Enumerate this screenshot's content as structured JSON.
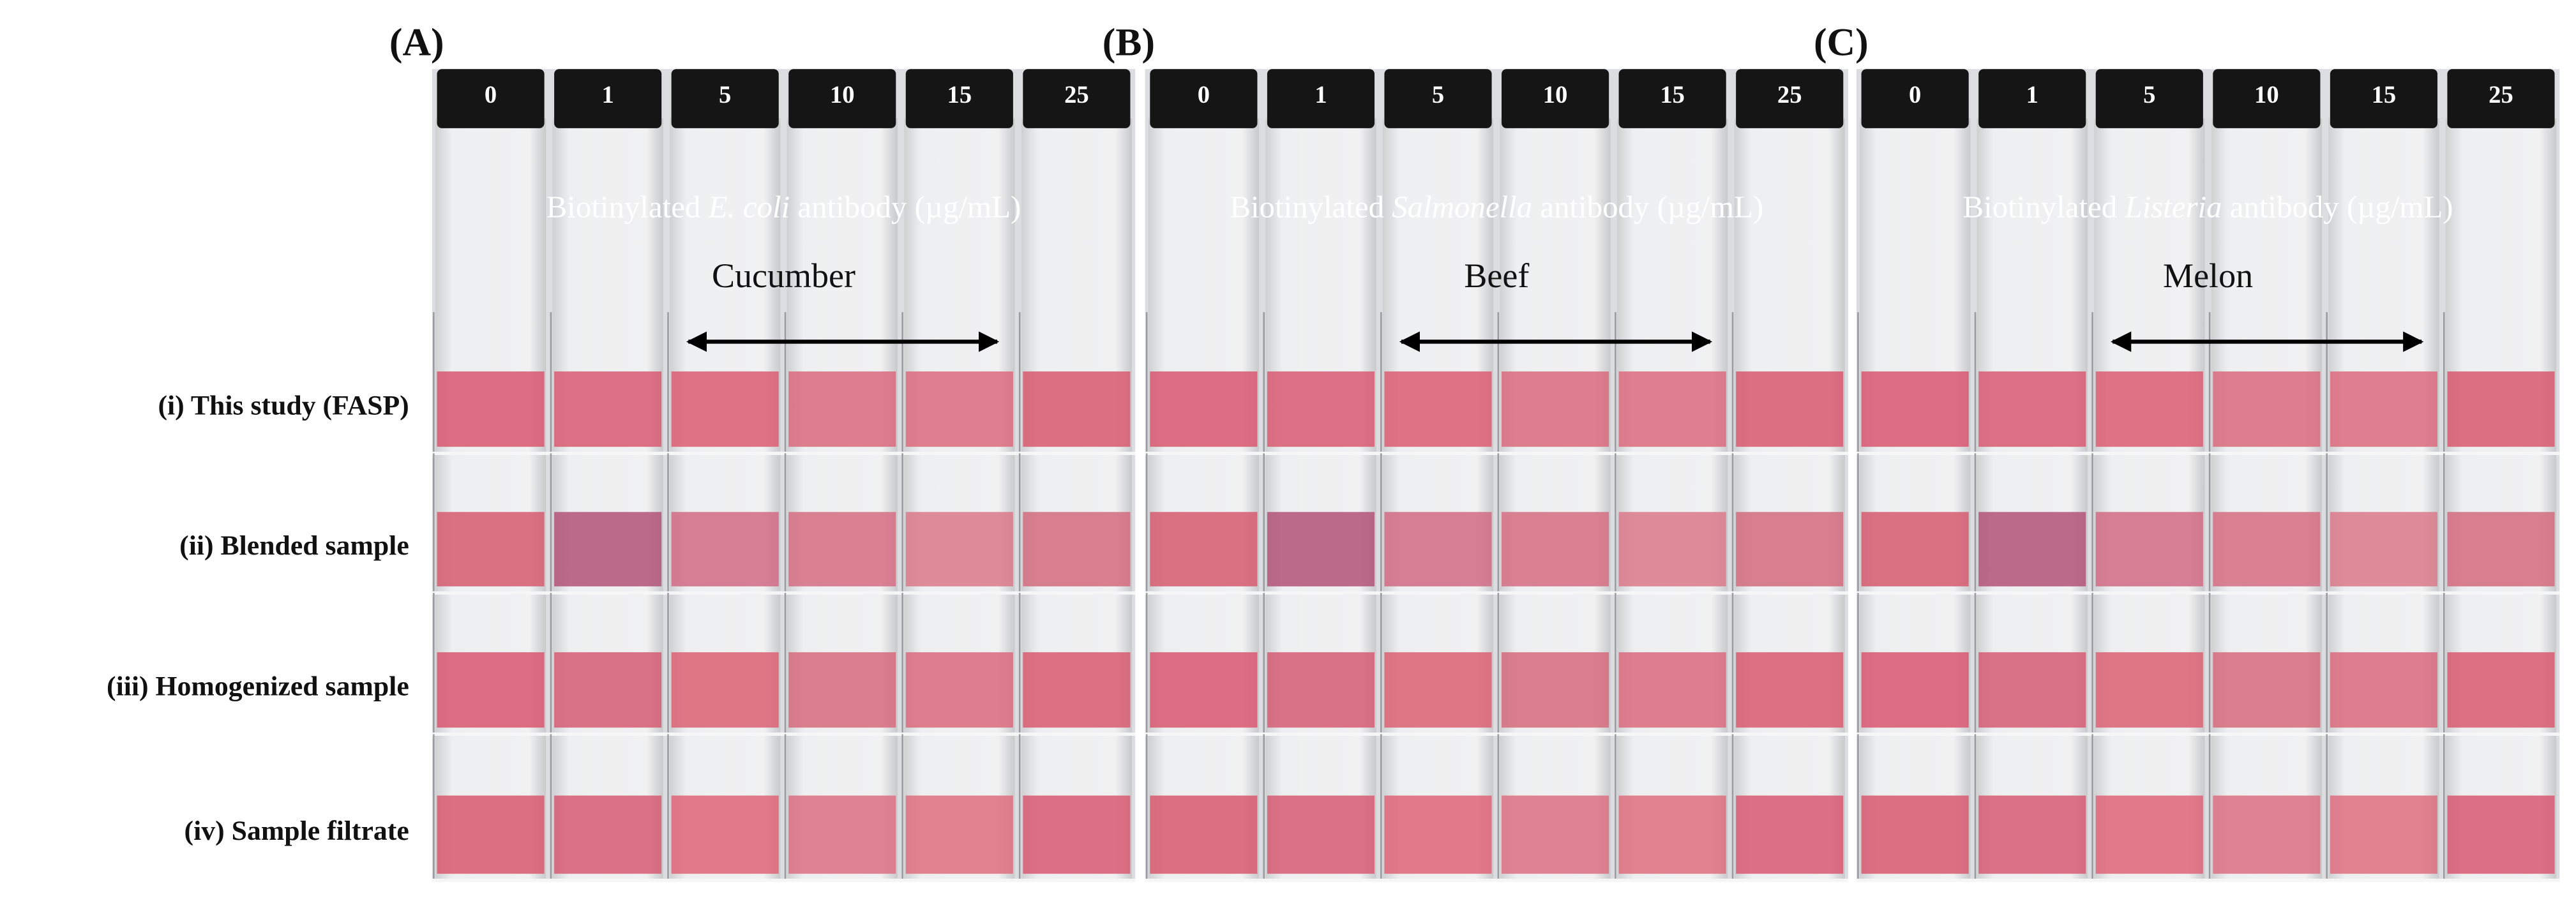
{
  "panels": [
    {
      "label": "(A)",
      "caps": [
        "0",
        "1",
        "5",
        "10",
        "15",
        "25"
      ],
      "caption": {
        "before": "Biotinylated ",
        "italic": "E. coli",
        "after": " antibody (µg/mL)"
      },
      "food": "Cucumber"
    },
    {
      "label": "(B)",
      "caps": [
        "0",
        "1",
        "5",
        "10",
        "15",
        "25"
      ],
      "caption": {
        "before": "Biotinylated ",
        "italic": "Salmonella",
        "after": " antibody (µg/mL)"
      },
      "food": "Beef"
    },
    {
      "label": "(C)",
      "caps": [
        "0",
        "1",
        "5",
        "10",
        "15",
        "25"
      ],
      "caption": {
        "before": "Biotinylated ",
        "italic": "Listeria",
        "after": " antibody (µg/mL)"
      },
      "food": "Melon"
    }
  ],
  "rows": [
    "(i) This study (FASP)",
    "(ii) Blended sample",
    "(iii) Homogenized sample",
    "(iv) Sample filtrate"
  ]
}
